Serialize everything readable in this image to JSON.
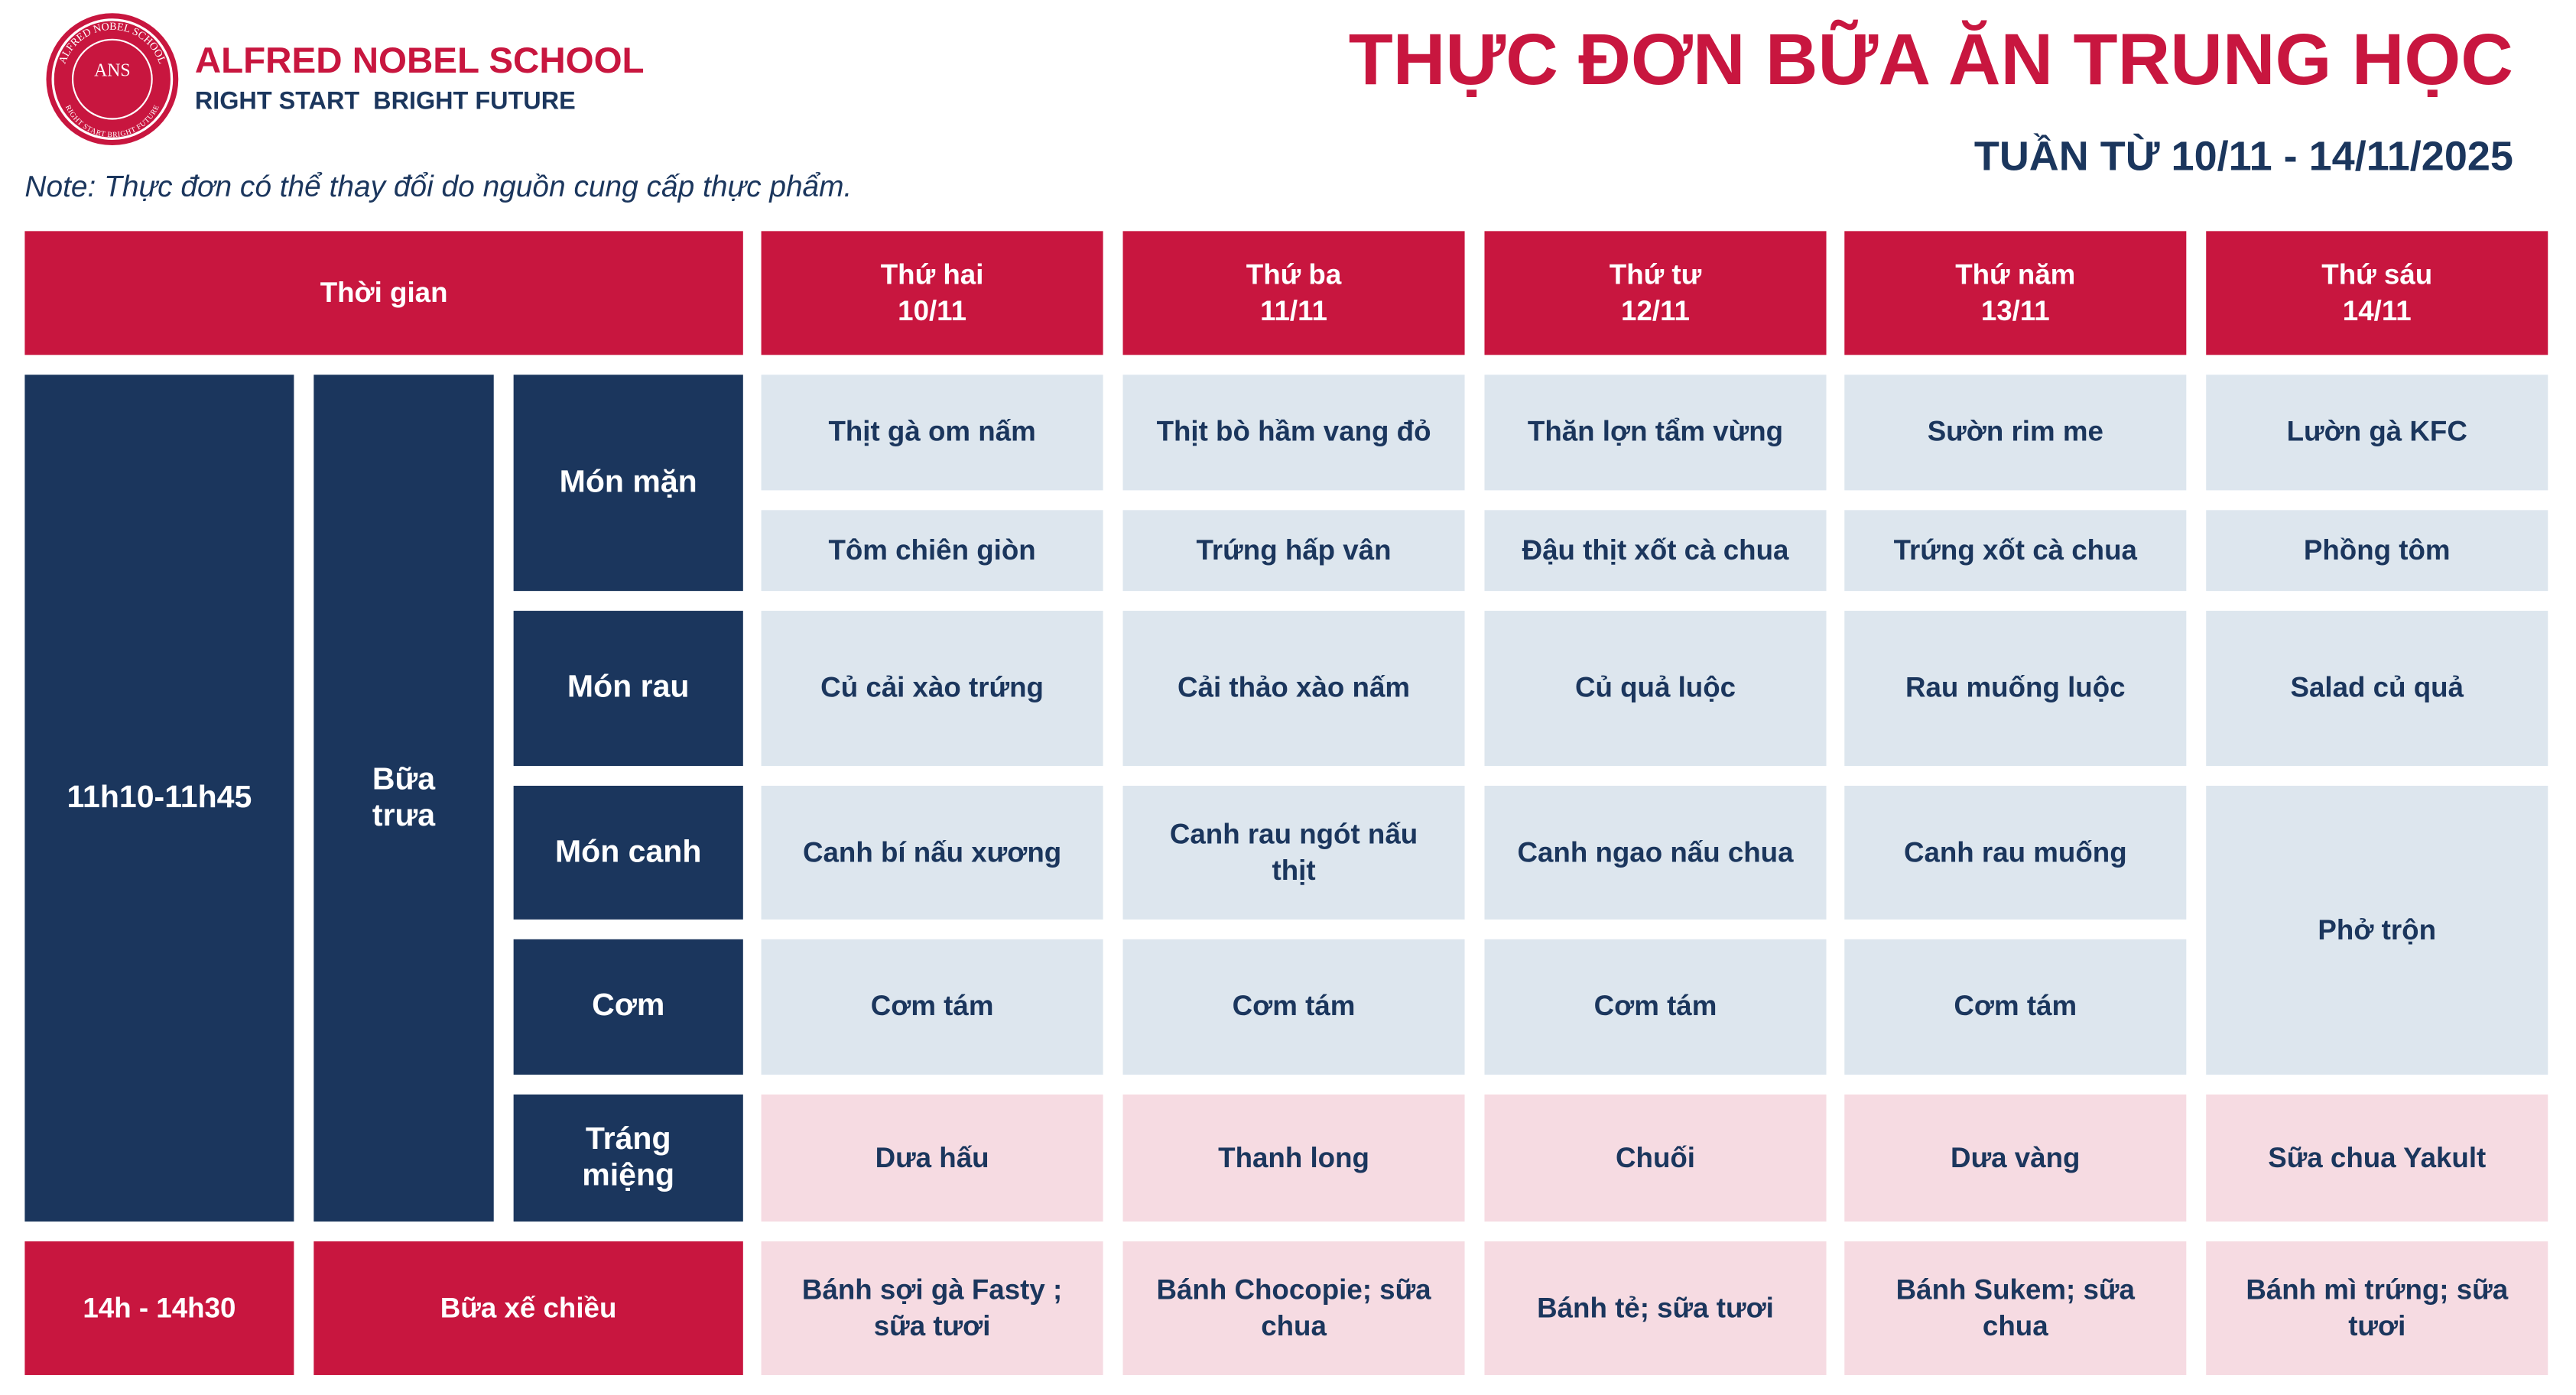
{
  "header": {
    "logo_ring_top": "ALFRED NOBEL SCHOOL",
    "logo_text": "ANS",
    "logo_ring_bottom": "RIGHT START BRIGHT FUTURE",
    "school_name": "ALFRED NOBEL SCHOOL",
    "slogan": "RIGHT START  BRIGHT FUTURE",
    "title": "THỰC ĐƠN BỮA ĂN TRUNG HỌC",
    "subtitle": "TUẦN TỪ 10/11 - 14/11/2025"
  },
  "note": "Note: Thực đơn có thể thay đổi do nguồn cung cấp thực phẩm.",
  "table": {
    "time_header": "Thời gian",
    "days": [
      {
        "name": "Thứ hai",
        "date": "10/11"
      },
      {
        "name": "Thứ ba",
        "date": "11/11"
      },
      {
        "name": "Thứ tư",
        "date": "12/11"
      },
      {
        "name": "Thứ năm",
        "date": "13/11"
      },
      {
        "name": "Thứ sáu",
        "date": "14/11"
      }
    ],
    "lunch": {
      "time": "11h10-11h45",
      "meal": "Bữa trưa",
      "courses": [
        {
          "name": "Món mặn",
          "dishes": [
            [
              "Thịt gà om nấm",
              "Thịt bò hầm vang đỏ",
              "Thăn lợn tẩm vừng",
              "Sườn rim me",
              "Lườn gà KFC"
            ],
            [
              "Tôm chiên giòn",
              "Trứng hấp vân",
              "Đậu thịt xốt cà chua",
              "Trứng xốt cà chua",
              "Phồng tôm"
            ]
          ]
        },
        {
          "name": "Món rau",
          "dishes": [
            [
              "Củ cải xào trứng",
              "Cải thảo xào nấm",
              "Củ quả luộc",
              "Rau muống luộc",
              "Salad củ quả"
            ]
          ]
        },
        {
          "name": "Món canh",
          "dishes": [
            [
              "Canh bí nấu xương",
              "Canh rau ngót nấu thịt",
              "Canh ngao nấu chua",
              "Canh rau muống",
              "Phở trộn"
            ]
          ]
        },
        {
          "name": "Cơm",
          "dishes": [
            [
              "Cơm tám",
              "Cơm tám",
              "Cơm tám",
              "Cơm tám"
            ]
          ]
        },
        {
          "name": "Tráng miệng",
          "dishes": [
            [
              "Dưa hấu",
              "Thanh long",
              "Chuối",
              "Dưa vàng",
              "Sữa chua Yakult"
            ]
          ]
        }
      ]
    },
    "snack": {
      "time": "14h - 14h30",
      "meal": "Bữa xế chiều",
      "dishes": [
        "Bánh sợi gà Fasty ; sữa tươi",
        "Bánh Chocopie; sữa chua",
        "Bánh tẻ; sữa tươi",
        "Bánh Sukem; sữa chua",
        "Bánh mì trứng; sữa tươi"
      ]
    }
  }
}
